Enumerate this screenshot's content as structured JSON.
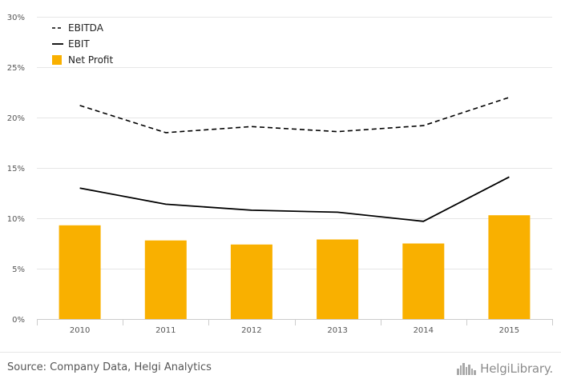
{
  "chart_data": {
    "type": "bar",
    "categories": [
      "2010",
      "2011",
      "2012",
      "2013",
      "2014",
      "2015"
    ],
    "ylim": [
      0,
      30
    ],
    "yticks": [
      "0%",
      "5%",
      "10%",
      "15%",
      "20%",
      "25%",
      "30%"
    ],
    "ytick_values": [
      0,
      5,
      10,
      15,
      20,
      25,
      30
    ],
    "grid": true,
    "legend_position": "top-left",
    "series": [
      {
        "name": "EBITDA",
        "type": "line",
        "style": "dashed",
        "color": "#000000",
        "values": [
          21.2,
          18.5,
          19.1,
          18.6,
          19.2,
          22.0
        ]
      },
      {
        "name": "EBIT",
        "type": "line",
        "style": "solid",
        "color": "#000000",
        "values": [
          13.0,
          11.4,
          10.8,
          10.6,
          9.7,
          14.1
        ]
      },
      {
        "name": "Net Profit",
        "type": "bar",
        "color": "#f9b000",
        "values": [
          9.3,
          7.8,
          7.4,
          7.9,
          7.5,
          10.3
        ]
      }
    ]
  },
  "footer": {
    "source": "Source: Company Data, Helgi Analytics",
    "brand": "HelgiLibrary."
  },
  "colors": {
    "grid": "#e6e6e6",
    "axis": "#cccccc",
    "bar": "#f9b000",
    "line": "#000000"
  },
  "icons": {
    "brand": "skyline-logo-icon"
  }
}
